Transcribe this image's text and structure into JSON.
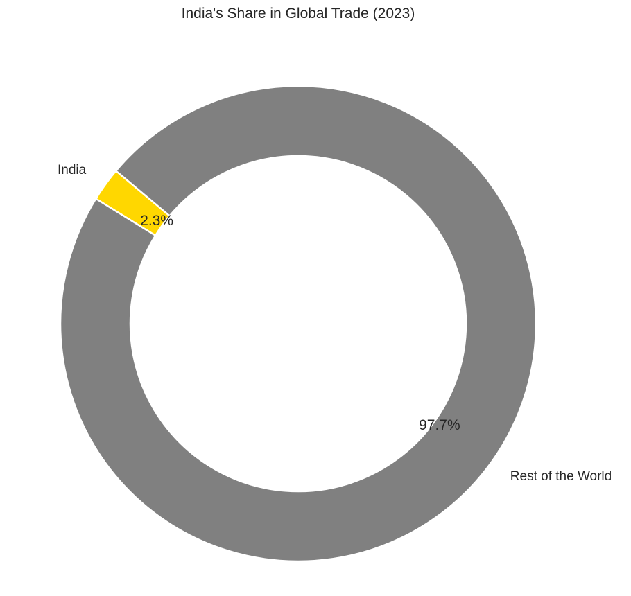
{
  "chart_data": {
    "type": "pie",
    "style": "donut",
    "title": "India's Share in Global Trade (2023)",
    "slices": [
      {
        "label": "India",
        "value": 2.3,
        "percent_label": "2.3%",
        "color": "#FFD700"
      },
      {
        "label": "Rest of the World",
        "value": 97.7,
        "percent_label": "97.7%",
        "color": "#808080"
      }
    ],
    "legend": "none"
  }
}
